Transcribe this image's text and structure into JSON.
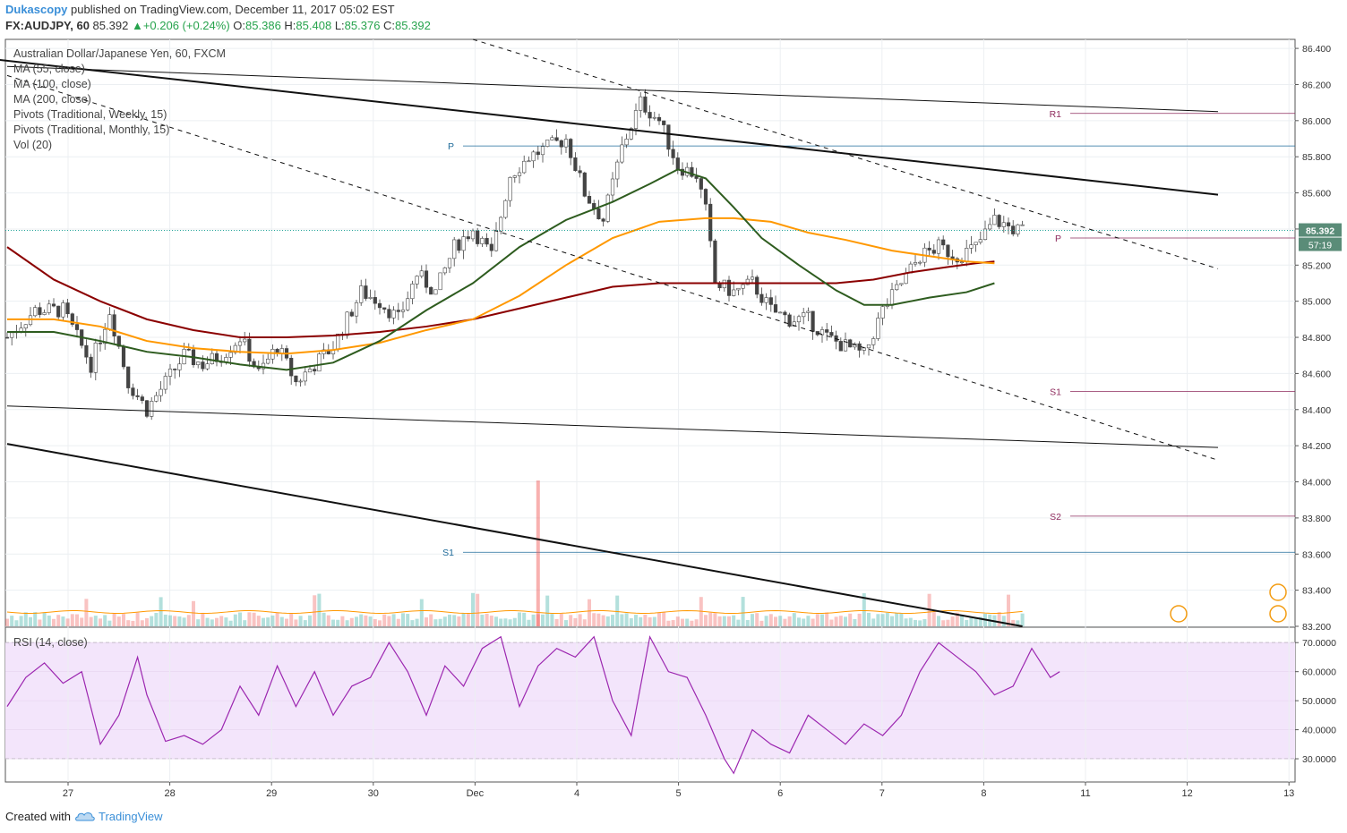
{
  "header": {
    "publisher": "Dukascopy",
    "published_text": "published on TradingView.com, December 11, 2017 05:02 EST",
    "symbol": "FX:AUDJPY, 60",
    "last": "85.392",
    "change": "+0.206 (+0.24%)",
    "ohlc": {
      "O": "85.386",
      "H": "85.408",
      "L": "85.376",
      "C": "85.392"
    }
  },
  "legend": {
    "title": "Australian Dollar/Japanese Yen, 60, FXCM",
    "items": [
      "MA (55, close)",
      "MA (100, close)",
      "MA (200, close)",
      "Pivots (Traditional, Weekly, 15)",
      "Pivots (Traditional, Monthly, 15)",
      "Vol (20)"
    ]
  },
  "rsi_label": "RSI (14, close)",
  "price_tag": "85.392",
  "timer_tag": "57:19",
  "footer": {
    "created_with": "Created with",
    "brand": "TradingView"
  },
  "colors": {
    "up": "#26a69a",
    "down": "#ef5350",
    "ma55": "#2e5c1f",
    "ma100": "#ff9800",
    "ma200": "#8b0000",
    "rsi": "#9c27b0",
    "rsi_band": "#f3e5fb",
    "pivot_weekly": "#1f6b9a",
    "pivot_monthly": "#8e2b5d"
  },
  "chart_data": {
    "type": "candlestick",
    "x_axis": {
      "ticks": [
        "27",
        "28",
        "29",
        "30",
        "Dec",
        "4",
        "5",
        "6",
        "7",
        "8",
        "11",
        "12",
        "13"
      ]
    },
    "price_axis": {
      "ticks": [
        "86.400",
        "86.200",
        "86.000",
        "85.800",
        "85.600",
        "85.400",
        "85.200",
        "85.000",
        "84.800",
        "84.600",
        "84.400",
        "84.200",
        "84.000",
        "83.800",
        "83.600",
        "83.400",
        "83.200"
      ],
      "ylim": [
        83.2,
        86.45
      ]
    },
    "rsi_axis": {
      "ticks": [
        "70.0000",
        "60.0000",
        "50.0000",
        "40.0000",
        "30.0000"
      ],
      "ylim": [
        22,
        75
      ],
      "band": [
        30,
        70
      ]
    },
    "pivots": [
      {
        "label": "P",
        "value": 85.86,
        "type": "weekly"
      },
      {
        "label": "S1",
        "value": 83.61,
        "type": "weekly"
      },
      {
        "label": "R1",
        "value": 86.04,
        "type": "monthly"
      },
      {
        "label": "P",
        "value": 85.35,
        "type": "monthly"
      },
      {
        "label": "S1",
        "value": 84.5,
        "type": "monthly"
      },
      {
        "label": "S2",
        "value": 83.81,
        "type": "monthly"
      }
    ],
    "close_path": [
      [
        0,
        84.8
      ],
      [
        6,
        84.95
      ],
      [
        12,
        84.95
      ],
      [
        18,
        84.65
      ],
      [
        22,
        84.95
      ],
      [
        26,
        84.55
      ],
      [
        30,
        84.4
      ],
      [
        34,
        84.55
      ],
      [
        38,
        84.7
      ],
      [
        42,
        84.65
      ],
      [
        46,
        84.7
      ],
      [
        50,
        84.8
      ],
      [
        54,
        84.6
      ],
      [
        58,
        84.75
      ],
      [
        62,
        84.55
      ],
      [
        66,
        84.65
      ],
      [
        70,
        84.75
      ],
      [
        76,
        85.05
      ],
      [
        80,
        85.0
      ],
      [
        84,
        84.9
      ],
      [
        88,
        85.15
      ],
      [
        92,
        85.05
      ],
      [
        96,
        85.3
      ],
      [
        100,
        85.4
      ],
      [
        104,
        85.25
      ],
      [
        108,
        85.7
      ],
      [
        112,
        85.8
      ],
      [
        116,
        85.85
      ],
      [
        120,
        85.9
      ],
      [
        124,
        85.6
      ],
      [
        128,
        85.45
      ],
      [
        132,
        85.85
      ],
      [
        136,
        86.1
      ],
      [
        140,
        86.0
      ],
      [
        144,
        85.75
      ],
      [
        148,
        85.7
      ],
      [
        150,
        85.5
      ],
      [
        152,
        85.1
      ],
      [
        156,
        85.05
      ],
      [
        160,
        85.1
      ],
      [
        164,
        84.95
      ],
      [
        168,
        84.9
      ],
      [
        172,
        84.9
      ],
      [
        176,
        84.8
      ],
      [
        180,
        84.75
      ],
      [
        184,
        84.7
      ],
      [
        188,
        84.95
      ],
      [
        192,
        85.1
      ],
      [
        196,
        85.25
      ],
      [
        200,
        85.3
      ],
      [
        204,
        85.25
      ],
      [
        208,
        85.3
      ],
      [
        212,
        85.45
      ],
      [
        216,
        85.4
      ],
      [
        218,
        85.39
      ]
    ],
    "ma55": [
      [
        0,
        84.83
      ],
      [
        10,
        84.83
      ],
      [
        20,
        84.78
      ],
      [
        30,
        84.72
      ],
      [
        40,
        84.69
      ],
      [
        50,
        84.65
      ],
      [
        60,
        84.62
      ],
      [
        70,
        84.66
      ],
      [
        80,
        84.78
      ],
      [
        90,
        84.95
      ],
      [
        100,
        85.1
      ],
      [
        110,
        85.3
      ],
      [
        120,
        85.45
      ],
      [
        130,
        85.55
      ],
      [
        138,
        85.65
      ],
      [
        144,
        85.73
      ],
      [
        150,
        85.68
      ],
      [
        156,
        85.52
      ],
      [
        162,
        85.35
      ],
      [
        170,
        85.2
      ],
      [
        178,
        85.06
      ],
      [
        184,
        84.98
      ],
      [
        190,
        84.98
      ],
      [
        198,
        85.02
      ],
      [
        206,
        85.05
      ],
      [
        212,
        85.1
      ]
    ],
    "ma100": [
      [
        0,
        84.9
      ],
      [
        10,
        84.9
      ],
      [
        20,
        84.86
      ],
      [
        30,
        84.78
      ],
      [
        40,
        84.74
      ],
      [
        50,
        84.72
      ],
      [
        60,
        84.71
      ],
      [
        70,
        84.73
      ],
      [
        80,
        84.77
      ],
      [
        90,
        84.84
      ],
      [
        100,
        84.9
      ],
      [
        110,
        85.03
      ],
      [
        120,
        85.2
      ],
      [
        130,
        85.35
      ],
      [
        140,
        85.44
      ],
      [
        150,
        85.46
      ],
      [
        156,
        85.46
      ],
      [
        164,
        85.44
      ],
      [
        172,
        85.38
      ],
      [
        180,
        85.34
      ],
      [
        190,
        85.28
      ],
      [
        198,
        85.25
      ],
      [
        206,
        85.22
      ],
      [
        212,
        85.21
      ]
    ],
    "ma200": [
      [
        0,
        85.3
      ],
      [
        10,
        85.12
      ],
      [
        20,
        85.0
      ],
      [
        30,
        84.9
      ],
      [
        40,
        84.84
      ],
      [
        50,
        84.8
      ],
      [
        60,
        84.8
      ],
      [
        70,
        84.81
      ],
      [
        80,
        84.83
      ],
      [
        90,
        84.86
      ],
      [
        100,
        84.9
      ],
      [
        110,
        84.96
      ],
      [
        120,
        85.02
      ],
      [
        130,
        85.08
      ],
      [
        140,
        85.1
      ],
      [
        150,
        85.1
      ],
      [
        160,
        85.1
      ],
      [
        170,
        85.1
      ],
      [
        178,
        85.1
      ],
      [
        186,
        85.12
      ],
      [
        194,
        85.16
      ],
      [
        202,
        85.19
      ],
      [
        208,
        85.21
      ],
      [
        212,
        85.22
      ]
    ],
    "trendlines": [
      {
        "style": "solid-thick",
        "from": [
          -10,
          86.36
        ],
        "to": [
          260,
          85.59
        ]
      },
      {
        "style": "solid-thin",
        "from": [
          0,
          86.3
        ],
        "to": [
          260,
          86.05
        ]
      },
      {
        "style": "solid-thin",
        "from": [
          0,
          84.42
        ],
        "to": [
          260,
          84.19
        ]
      },
      {
        "style": "solid-thick",
        "from": [
          0,
          84.21
        ],
        "to": [
          218,
          83.2
        ]
      },
      {
        "style": "dashed",
        "from": [
          0,
          86.25
        ],
        "to": [
          260,
          84.12
        ]
      },
      {
        "style": "dashed",
        "from": [
          100,
          86.45
        ],
        "to": [
          260,
          85.18
        ]
      }
    ],
    "rsi_path": [
      [
        0,
        48
      ],
      [
        4,
        58
      ],
      [
        8,
        63
      ],
      [
        12,
        56
      ],
      [
        16,
        60
      ],
      [
        20,
        35
      ],
      [
        24,
        45
      ],
      [
        28,
        65
      ],
      [
        30,
        52
      ],
      [
        34,
        36
      ],
      [
        38,
        38
      ],
      [
        42,
        35
      ],
      [
        46,
        40
      ],
      [
        50,
        55
      ],
      [
        54,
        45
      ],
      [
        58,
        62
      ],
      [
        62,
        48
      ],
      [
        66,
        60
      ],
      [
        70,
        45
      ],
      [
        74,
        55
      ],
      [
        78,
        58
      ],
      [
        82,
        70
      ],
      [
        86,
        60
      ],
      [
        90,
        45
      ],
      [
        94,
        62
      ],
      [
        98,
        55
      ],
      [
        102,
        68
      ],
      [
        106,
        72
      ],
      [
        110,
        48
      ],
      [
        114,
        62
      ],
      [
        118,
        68
      ],
      [
        122,
        65
      ],
      [
        126,
        72
      ],
      [
        130,
        50
      ],
      [
        134,
        38
      ],
      [
        138,
        72
      ],
      [
        142,
        60
      ],
      [
        146,
        58
      ],
      [
        150,
        45
      ],
      [
        154,
        30
      ],
      [
        156,
        25
      ],
      [
        160,
        40
      ],
      [
        164,
        35
      ],
      [
        168,
        32
      ],
      [
        172,
        45
      ],
      [
        176,
        40
      ],
      [
        180,
        35
      ],
      [
        184,
        42
      ],
      [
        188,
        38
      ],
      [
        192,
        45
      ],
      [
        196,
        60
      ],
      [
        200,
        70
      ],
      [
        204,
        65
      ],
      [
        208,
        60
      ],
      [
        212,
        52
      ],
      [
        216,
        55
      ],
      [
        220,
        68
      ],
      [
        224,
        58
      ],
      [
        226,
        60
      ]
    ]
  }
}
